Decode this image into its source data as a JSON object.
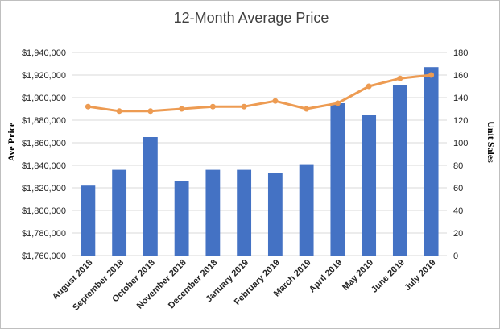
{
  "chart_data": {
    "type": "bar",
    "title": "12-Month Average Price",
    "categories": [
      "August 2018",
      "September 2018",
      "October 2018",
      "November 2018",
      "December 2018",
      "January 2019",
      "February 2019",
      "March 2019",
      "April 2019",
      "May 2019",
      "June 2019",
      "July 2019"
    ],
    "series": [
      {
        "type": "bar",
        "axis": "left",
        "color": "#4472C4",
        "values": [
          1822000,
          1836000,
          1865000,
          1826000,
          1836000,
          1836000,
          1833000,
          1841000,
          1895000,
          1885000,
          1911000,
          1927000
        ]
      },
      {
        "type": "line",
        "axis": "right",
        "color": "#ED9B52",
        "values": [
          132,
          128,
          128,
          130,
          132,
          132,
          137,
          130,
          135,
          150,
          157,
          160
        ]
      }
    ],
    "y_left": {
      "label": "Ave Price",
      "min": 1760000,
      "max": 1940000,
      "step": 20000,
      "ticks": [
        "$1,760,000",
        "$1,780,000",
        "$1,800,000",
        "$1,820,000",
        "$1,840,000",
        "$1,860,000",
        "$1,880,000",
        "$1,900,000",
        "$1,920,000",
        "$1,940,000"
      ]
    },
    "y_right": {
      "label": "Unit Sales",
      "min": 0,
      "max": 180,
      "step": 20,
      "ticks": [
        "0",
        "20",
        "40",
        "60",
        "80",
        "100",
        "120",
        "140",
        "160",
        "180"
      ]
    },
    "grid": true,
    "legend": "none"
  }
}
